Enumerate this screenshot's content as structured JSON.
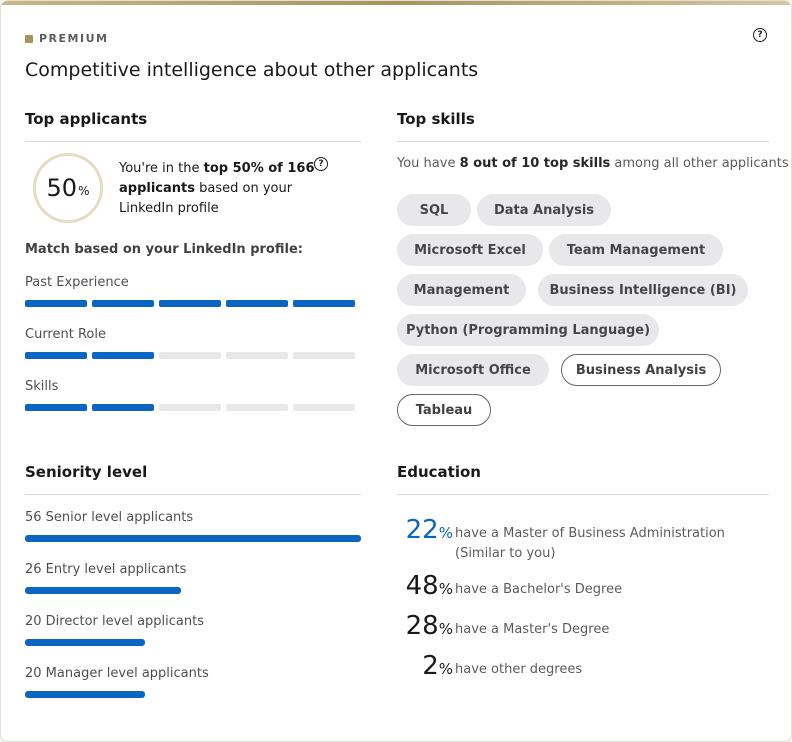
{
  "header": {
    "premium_label": "PREMIUM",
    "title": "Competitive intelligence about other applicants",
    "help_icon": "question-circle-icon"
  },
  "top_applicants": {
    "heading": "Top applicants",
    "percent": "50",
    "percent_sign": "%",
    "rank_prefix": "You're in the ",
    "rank_bold": "top 50% of 166 applicants",
    "rank_suffix": " based on your LinkedIn profile",
    "match_heading": "Match based on your LinkedIn profile:",
    "criteria": [
      {
        "label": "Past Experience",
        "filled": 5,
        "total": 5
      },
      {
        "label": "Current Role",
        "filled": 2,
        "total": 5
      },
      {
        "label": "Skills",
        "filled": 2,
        "total": 5
      }
    ]
  },
  "top_skills": {
    "heading": "Top skills",
    "summary_prefix": "You have ",
    "summary_bold": "8 out of 10 top skills",
    "summary_suffix": " among all other applicants",
    "skills": [
      {
        "label": "SQL",
        "matched": true
      },
      {
        "label": "Data Analysis",
        "matched": true
      },
      {
        "label": "Microsoft Excel",
        "matched": true
      },
      {
        "label": "Team Management",
        "matched": true
      },
      {
        "label": "Management",
        "matched": true
      },
      {
        "label": "Business Intelligence (BI)",
        "matched": true
      },
      {
        "label": "Python (Programming Language)",
        "matched": true
      },
      {
        "label": "Microsoft Office",
        "matched": true
      },
      {
        "label": "Business Analysis",
        "matched": false
      },
      {
        "label": "Tableau",
        "matched": false
      }
    ]
  },
  "seniority": {
    "heading": "Seniority level",
    "levels": [
      {
        "label": "56 Senior level applicants",
        "count": 56
      },
      {
        "label": "26 Entry level applicants",
        "count": 26
      },
      {
        "label": "20 Director level applicants",
        "count": 20
      },
      {
        "label": "20 Manager level applicants",
        "count": 20
      }
    ]
  },
  "education": {
    "heading": "Education",
    "percent_sign": "%",
    "items": [
      {
        "value": "22",
        "text": "have a Master of Business Administration (Similar to you)",
        "highlight": true
      },
      {
        "value": "48",
        "text": "have a Bachelor's Degree",
        "highlight": false
      },
      {
        "value": "28",
        "text": "have a Master's Degree",
        "highlight": false
      },
      {
        "value": "2",
        "text": "have other degrees",
        "highlight": false
      }
    ]
  },
  "colors": {
    "accent": "#0a66c2",
    "premium_gold": "#a8935e",
    "bar_empty": "#e8e8e8",
    "pill_bg": "#e8e8ea"
  }
}
